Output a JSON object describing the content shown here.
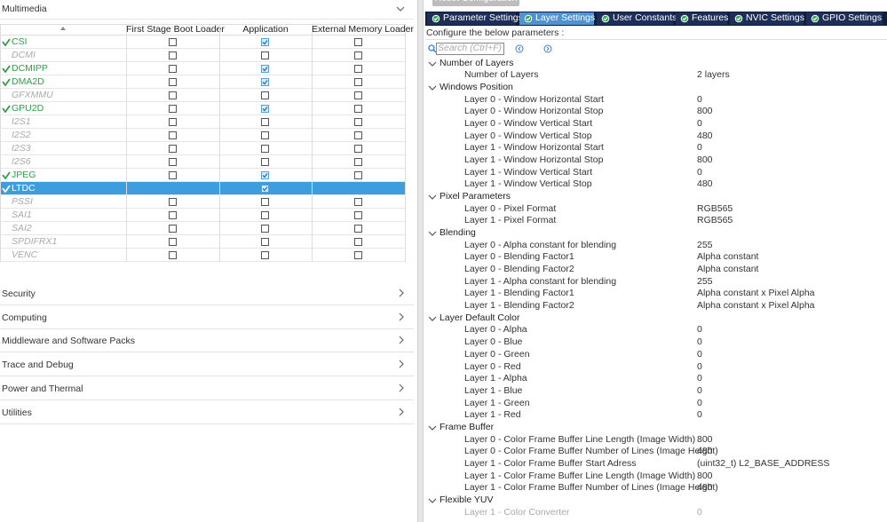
{
  "left": {
    "section": "Multimedia",
    "columns": [
      "First Stage Boot Loader",
      "Application",
      "External Memory Loader"
    ],
    "rows": [
      {
        "name": "CSI",
        "enabled": true,
        "selected": false,
        "modes": [
          false,
          true,
          false
        ]
      },
      {
        "name": "DCMI",
        "enabled": false,
        "selected": false,
        "modes": [
          false,
          false,
          false
        ]
      },
      {
        "name": "DCMIPP",
        "enabled": true,
        "selected": false,
        "modes": [
          false,
          true,
          false
        ]
      },
      {
        "name": "DMA2D",
        "enabled": true,
        "selected": false,
        "modes": [
          false,
          true,
          false
        ]
      },
      {
        "name": "GFXMMU",
        "enabled": false,
        "selected": false,
        "modes": [
          false,
          false,
          false
        ]
      },
      {
        "name": "GPU2D",
        "enabled": true,
        "selected": false,
        "modes": [
          false,
          true,
          false
        ]
      },
      {
        "name": "I2S1",
        "enabled": false,
        "selected": false,
        "modes": [
          false,
          false,
          false
        ]
      },
      {
        "name": "I2S2",
        "enabled": false,
        "selected": false,
        "modes": [
          false,
          false,
          false
        ]
      },
      {
        "name": "I2S3",
        "enabled": false,
        "selected": false,
        "modes": [
          false,
          false,
          false
        ]
      },
      {
        "name": "I2S6",
        "enabled": false,
        "selected": false,
        "modes": [
          false,
          false,
          false
        ]
      },
      {
        "name": "JPEG",
        "enabled": true,
        "selected": false,
        "modes": [
          false,
          true,
          false
        ]
      },
      {
        "name": "LTDC",
        "enabled": true,
        "selected": true,
        "modes": [
          null,
          true,
          null
        ]
      },
      {
        "name": "PSSI",
        "enabled": false,
        "selected": false,
        "modes": [
          false,
          false,
          false
        ]
      },
      {
        "name": "SAI1",
        "enabled": false,
        "selected": false,
        "modes": [
          false,
          false,
          false
        ]
      },
      {
        "name": "SAI2",
        "enabled": false,
        "selected": false,
        "modes": [
          false,
          false,
          false
        ]
      },
      {
        "name": "SPDIFRX1",
        "enabled": false,
        "selected": false,
        "modes": [
          false,
          false,
          false
        ]
      },
      {
        "name": "VENC",
        "enabled": false,
        "selected": false,
        "modes": [
          false,
          false,
          false
        ]
      }
    ],
    "categories": [
      "Security",
      "Computing",
      "Middleware and Software Packs",
      "Trace and Debug",
      "Power and Thermal",
      "Utilities"
    ]
  },
  "right": {
    "reset_button": "Reset Configuration",
    "tabs": [
      "Parameter Settings",
      "Layer Settings",
      "User Constants",
      "Features",
      "NVIC Settings",
      "GPIO Settings"
    ],
    "active_tab": 1,
    "instruction": "Configure the below parameters :",
    "search_placeholder": "Search (Ctrl+F)",
    "groups": [
      {
        "name": "Number of Layers",
        "params": [
          {
            "label": "Number of Layers",
            "value": "2 layers"
          }
        ]
      },
      {
        "name": "Windows Position",
        "params": [
          {
            "label": "Layer 0 - Window Horizontal Start",
            "value": "0"
          },
          {
            "label": "Layer 0 - Window Horizontal Stop",
            "value": "800"
          },
          {
            "label": "Layer 0 - Window Vertical Start",
            "value": "0"
          },
          {
            "label": "Layer 0 - Window Vertical Stop",
            "value": "480"
          },
          {
            "label": "Layer 1 - Window Horizontal Start",
            "value": "0"
          },
          {
            "label": "Layer 1 - Window Horizontal Stop",
            "value": "800"
          },
          {
            "label": "Layer 1 - Window Vertical Start",
            "value": "0"
          },
          {
            "label": "Layer 1 - Window Vertical Stop",
            "value": "480"
          }
        ]
      },
      {
        "name": "Pixel Parameters",
        "params": [
          {
            "label": "Layer 0 - Pixel Format",
            "value": "RGB565"
          },
          {
            "label": "Layer 1 - Pixel Format",
            "value": "RGB565"
          }
        ]
      },
      {
        "name": "Blending",
        "params": [
          {
            "label": "Layer 0 - Alpha constant for blending",
            "value": "255"
          },
          {
            "label": "Layer 0 - Blending Factor1",
            "value": "Alpha constant"
          },
          {
            "label": "Layer 0 - Blending Factor2",
            "value": "Alpha constant"
          },
          {
            "label": "Layer 1 - Alpha constant for blending",
            "value": "255"
          },
          {
            "label": "Layer 1 - Blending Factor1",
            "value": "Alpha constant x Pixel Alpha"
          },
          {
            "label": "Layer 1 - Blending Factor2",
            "value": "Alpha constant x Pixel Alpha"
          }
        ]
      },
      {
        "name": "Layer Default Color",
        "params": [
          {
            "label": "Layer 0 - Alpha",
            "value": "0"
          },
          {
            "label": "Layer 0 - Blue",
            "value": "0"
          },
          {
            "label": "Layer 0 - Green",
            "value": "0"
          },
          {
            "label": "Layer 0 - Red",
            "value": "0"
          },
          {
            "label": "Layer 1 - Alpha",
            "value": "0"
          },
          {
            "label": "Layer 1 - Blue",
            "value": "0"
          },
          {
            "label": "Layer 1 - Green",
            "value": "0"
          },
          {
            "label": "Layer 1 - Red",
            "value": "0"
          }
        ]
      },
      {
        "name": "Frame Buffer",
        "params": [
          {
            "label": "Layer 0 - Color Frame Buffer Line Length (Image Width)",
            "value": "800"
          },
          {
            "label": "Layer 0 - Color Frame Buffer Number of Lines (Image Height)",
            "value": "480"
          },
          {
            "label": "Layer 1 - Color Frame Buffer Start Adress",
            "value": "(uint32_t) L2_BASE_ADDRESS"
          },
          {
            "label": "Layer 1 - Color Frame Buffer Line Length (Image Width)",
            "value": "800"
          },
          {
            "label": "Layer 1 - Color Frame Buffer Number of Lines (Image Height)",
            "value": "480"
          }
        ]
      },
      {
        "name": "Flexible YUV",
        "params": [
          {
            "label": "Layer 1 - Color Converter",
            "value": "0",
            "disabled": true
          }
        ]
      }
    ]
  }
}
